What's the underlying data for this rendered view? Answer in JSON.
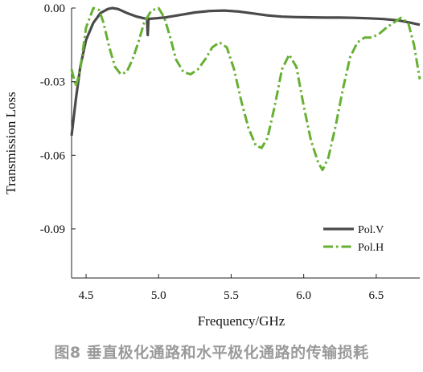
{
  "caption": "图8 垂直极化通路和水平极化通路的传输损耗",
  "chart_data": {
    "type": "line",
    "title": "",
    "xlabel": "Frequency/GHz",
    "ylabel": "Transmission Loss",
    "xlim": [
      4.4,
      6.8
    ],
    "ylim": [
      -0.11,
      0.0
    ],
    "xticks": [
      4.5,
      5.0,
      5.5,
      6.0,
      6.5
    ],
    "xtick_labels": [
      "4.5",
      "5.0",
      "5.5",
      "6.0",
      "6.5"
    ],
    "yticks": [
      0.0,
      -0.03,
      -0.06,
      -0.09
    ],
    "ytick_labels": [
      "0.00",
      "-0.03",
      "-0.06",
      "-0.09"
    ],
    "grid": false,
    "legend_position": "bottom-right",
    "series": [
      {
        "name": "Pol.V",
        "color": "#4a4a4a",
        "style": "solid",
        "x": [
          4.4,
          4.43,
          4.46,
          4.5,
          4.55,
          4.6,
          4.65,
          4.68,
          4.72,
          4.78,
          4.85,
          4.9,
          4.92,
          4.925,
          4.93,
          4.935,
          4.94,
          4.98,
          5.05,
          5.15,
          5.25,
          5.35,
          5.45,
          5.55,
          5.65,
          5.75,
          5.85,
          5.95,
          6.05,
          6.15,
          6.25,
          6.35,
          6.45,
          6.55,
          6.65,
          6.72,
          6.8
        ],
        "y": [
          -0.052,
          -0.037,
          -0.024,
          -0.013,
          -0.006,
          -0.002,
          -0.0004,
          0.0,
          -0.0004,
          -0.002,
          -0.0035,
          -0.0042,
          -0.0044,
          -0.011,
          -0.0048,
          -0.0044,
          -0.0044,
          -0.0042,
          -0.0038,
          -0.0028,
          -0.0018,
          -0.0012,
          -0.001,
          -0.0014,
          -0.0022,
          -0.003,
          -0.0035,
          -0.0037,
          -0.0038,
          -0.0039,
          -0.0039,
          -0.004,
          -0.0042,
          -0.0045,
          -0.005,
          -0.0058,
          -0.0068
        ]
      },
      {
        "name": "Pol.H",
        "color": "#66b032",
        "style": "dash-dot",
        "x": [
          4.4,
          4.43,
          4.46,
          4.5,
          4.55,
          4.59,
          4.62,
          4.66,
          4.7,
          4.74,
          4.78,
          4.82,
          4.86,
          4.9,
          4.95,
          5.0,
          5.04,
          5.08,
          5.12,
          5.17,
          5.22,
          5.27,
          5.32,
          5.37,
          5.42,
          5.47,
          5.52,
          5.57,
          5.62,
          5.67,
          5.71,
          5.75,
          5.8,
          5.85,
          5.9,
          5.95,
          6.0,
          6.05,
          6.1,
          6.13,
          6.17,
          6.22,
          6.27,
          6.32,
          6.37,
          6.42,
          6.47,
          6.52,
          6.57,
          6.62,
          6.67,
          6.72,
          6.76,
          6.8
        ],
        "y": [
          -0.025,
          -0.032,
          -0.025,
          -0.008,
          0.0,
          -0.0008,
          -0.006,
          -0.016,
          -0.024,
          -0.027,
          -0.026,
          -0.021,
          -0.014,
          -0.006,
          -0.001,
          0.0,
          -0.004,
          -0.012,
          -0.021,
          -0.026,
          -0.027,
          -0.025,
          -0.021,
          -0.016,
          -0.014,
          -0.016,
          -0.025,
          -0.038,
          -0.049,
          -0.056,
          -0.057,
          -0.053,
          -0.04,
          -0.025,
          -0.019,
          -0.024,
          -0.04,
          -0.054,
          -0.063,
          -0.066,
          -0.061,
          -0.048,
          -0.033,
          -0.02,
          -0.014,
          -0.012,
          -0.012,
          -0.0105,
          -0.008,
          -0.006,
          -0.004,
          -0.006,
          -0.015,
          -0.029
        ]
      }
    ]
  }
}
